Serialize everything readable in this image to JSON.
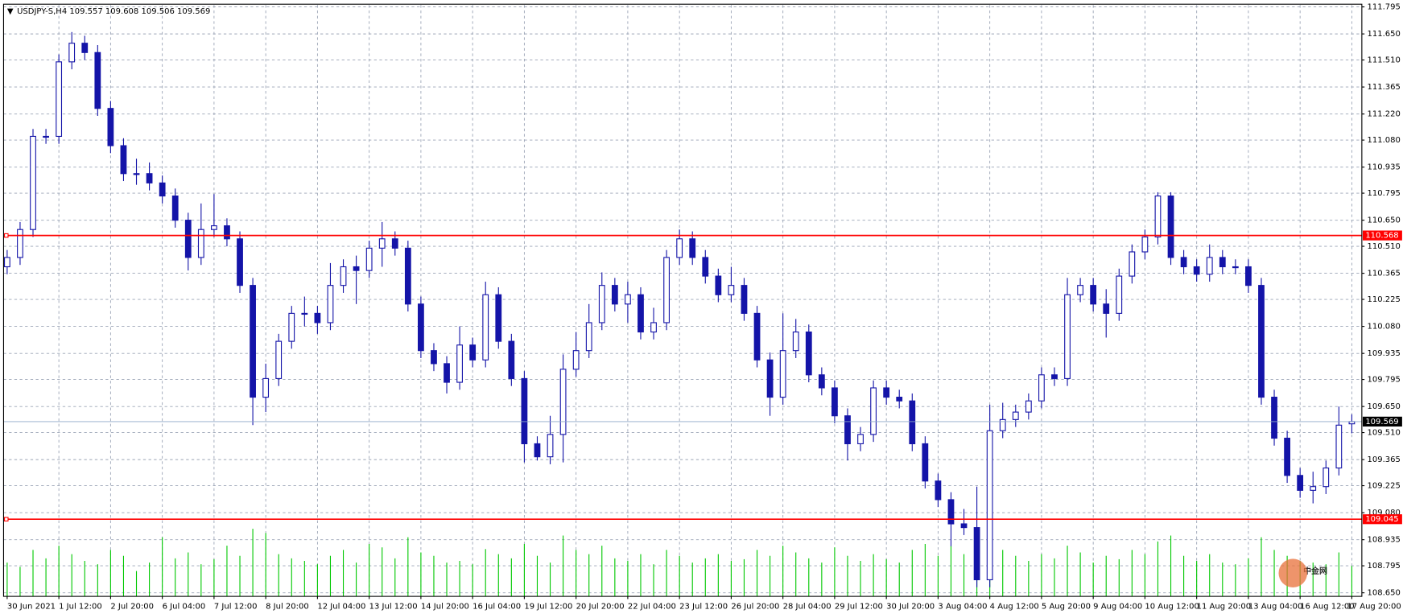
{
  "chart_data": {
    "type": "candlestick",
    "symbol": "USDJPY-S,H4",
    "up_color": "#ffffff",
    "color": "#1414a8",
    "volume_color": "#00c800",
    "level_color": "#ff0000",
    "last_color": "#8fa8c8",
    "grid": true,
    "watermark": "中金网",
    "ylim": [
      108.65,
      111.795
    ],
    "yticks": [
      111.795,
      {
        "value": 111.65,
        "label": "111.650"
      },
      {
        "value": 111.51,
        "label": "111.510"
      },
      111.365,
      {
        "value": 111.22,
        "label": "111.220"
      },
      {
        "value": 111.08,
        "label": "111.080"
      },
      110.935,
      110.795,
      {
        "value": 110.65,
        "label": "110.650"
      },
      {
        "value": 110.51,
        "label": "110.510"
      },
      110.365,
      110.225,
      {
        "value": 110.08,
        "label": "110.080"
      },
      109.935,
      109.795,
      {
        "value": 109.65,
        "label": "109.650"
      },
      {
        "value": 109.51,
        "label": "109.510"
      },
      109.365,
      109.225,
      {
        "value": 109.08,
        "label": "109.080"
      },
      108.935,
      108.795,
      {
        "value": 108.65,
        "label": "108.650"
      }
    ],
    "levels": [
      110.568,
      109.045
    ],
    "categories": [
      "30 Jun 2021",
      null,
      null,
      null,
      "1 Jul 12:00",
      null,
      null,
      null,
      "2 Jul 20:00",
      null,
      null,
      null,
      "6 Jul 04:00",
      null,
      null,
      null,
      "7 Jul 12:00",
      null,
      null,
      null,
      "8 Jul 20:00",
      null,
      null,
      null,
      "12 Jul 04:00",
      null,
      null,
      null,
      "13 Jul 12:00",
      null,
      null,
      null,
      "14 Jul 20:00",
      null,
      null,
      null,
      "16 Jul 04:00",
      null,
      null,
      null,
      "19 Jul 12:00",
      null,
      null,
      null,
      "20 Jul 20:00",
      null,
      null,
      null,
      "22 Jul 04:00",
      null,
      null,
      null,
      "23 Jul 12:00",
      null,
      null,
      null,
      "26 Jul 20:00",
      null,
      null,
      null,
      "28 Jul 04:00",
      null,
      null,
      null,
      "29 Jul 12:00",
      null,
      null,
      null,
      "30 Jul 20:00",
      null,
      null,
      null,
      "3 Aug 04:00",
      null,
      null,
      null,
      "4 Aug 12:00",
      null,
      null,
      null,
      "5 Aug 20:00",
      null,
      null,
      null,
      "9 Aug 04:00",
      null,
      null,
      null,
      "10 Aug 12:00",
      null,
      null,
      null,
      "11 Aug 20:00",
      null,
      null,
      null,
      "13 Aug 04:00",
      null,
      null,
      null,
      "16 Aug 12:00",
      null,
      null,
      null,
      "17 Aug 20:00"
    ],
    "open": [
      110.4,
      110.45,
      110.6,
      111.1,
      111.1,
      111.5,
      111.6,
      111.55,
      111.25,
      111.05,
      110.9,
      110.9,
      110.85,
      110.78,
      110.65,
      110.45,
      110.6,
      110.62,
      110.55,
      110.3,
      109.7,
      109.8,
      110.0,
      110.15,
      110.15,
      110.1,
      110.3,
      110.4,
      110.38,
      110.5,
      110.55,
      110.5,
      110.2,
      109.95,
      109.88,
      109.78,
      109.98,
      109.9,
      110.25,
      110.0,
      109.8,
      109.45,
      109.38,
      109.5,
      109.85,
      109.95,
      110.1,
      110.3,
      110.2,
      110.25,
      110.05,
      110.1,
      110.45,
      110.55,
      110.45,
      110.35,
      110.25,
      110.3,
      110.15,
      109.9,
      109.7,
      109.95,
      110.05,
      109.82,
      109.75,
      109.6,
      109.45,
      109.5,
      109.75,
      109.7,
      109.68,
      109.45,
      109.25,
      109.15,
      109.02,
      109.0,
      108.72,
      109.52,
      109.58,
      109.62,
      109.68,
      109.82,
      109.8,
      110.25,
      110.3,
      110.2,
      110.15,
      110.35,
      110.48,
      110.56,
      110.78,
      110.45,
      110.4,
      110.36,
      110.45,
      110.4,
      110.4,
      110.3,
      109.7,
      109.48,
      109.28,
      109.2,
      109.22,
      109.32,
      109.557
    ],
    "high": [
      110.49,
      110.64,
      111.14,
      111.14,
      111.54,
      111.66,
      111.64,
      111.59,
      111.29,
      111.09,
      110.98,
      110.96,
      110.89,
      110.82,
      110.69,
      110.74,
      110.79,
      110.66,
      110.59,
      110.34,
      109.88,
      110.04,
      110.19,
      110.24,
      110.19,
      110.42,
      110.44,
      110.46,
      110.54,
      110.64,
      110.59,
      110.54,
      110.24,
      109.99,
      109.92,
      110.08,
      110.02,
      110.32,
      110.29,
      110.04,
      109.84,
      109.49,
      109.6,
      109.93,
      110.05,
      110.2,
      110.37,
      110.34,
      110.32,
      110.29,
      110.18,
      110.49,
      110.6,
      110.59,
      110.49,
      110.39,
      110.4,
      110.34,
      110.19,
      109.94,
      110.15,
      110.12,
      110.09,
      109.86,
      109.79,
      109.64,
      109.54,
      109.79,
      109.79,
      109.74,
      109.72,
      109.49,
      109.29,
      109.19,
      109.1,
      109.22,
      109.66,
      109.67,
      109.66,
      109.72,
      109.86,
      109.86,
      110.34,
      110.34,
      110.34,
      110.28,
      110.39,
      110.52,
      110.6,
      110.8,
      110.8,
      110.49,
      110.44,
      110.52,
      110.49,
      110.44,
      110.44,
      110.34,
      109.74,
      109.52,
      109.32,
      109.3,
      109.36,
      109.65,
      109.608
    ],
    "low": [
      110.36,
      110.41,
      110.56,
      111.06,
      111.06,
      111.46,
      111.51,
      111.21,
      111.01,
      110.86,
      110.84,
      110.81,
      110.74,
      110.61,
      110.38,
      110.41,
      110.56,
      110.51,
      110.26,
      109.55,
      109.62,
      109.76,
      109.96,
      110.08,
      110.04,
      110.06,
      110.26,
      110.2,
      110.34,
      110.4,
      110.46,
      110.16,
      109.91,
      109.84,
      109.72,
      109.74,
      109.86,
      109.86,
      109.96,
      109.76,
      109.35,
      109.36,
      109.34,
      109.35,
      109.81,
      109.91,
      110.06,
      110.16,
      110.1,
      110.01,
      110.01,
      110.06,
      110.41,
      110.41,
      110.31,
      110.21,
      110.21,
      110.11,
      109.86,
      109.6,
      109.66,
      109.91,
      109.78,
      109.71,
      109.56,
      109.36,
      109.41,
      109.46,
      109.66,
      109.64,
      109.41,
      109.21,
      109.11,
      108.9,
      108.96,
      108.68,
      108.68,
      109.48,
      109.54,
      109.58,
      109.64,
      109.76,
      109.76,
      110.21,
      110.16,
      110.02,
      110.11,
      110.31,
      110.44,
      110.52,
      110.41,
      110.36,
      110.32,
      110.32,
      110.36,
      110.36,
      110.26,
      109.66,
      109.44,
      109.24,
      109.16,
      109.13,
      109.18,
      109.28,
      109.506
    ],
    "close": [
      110.45,
      110.6,
      111.1,
      111.1,
      111.5,
      111.6,
      111.55,
      111.25,
      111.05,
      110.9,
      110.9,
      110.85,
      110.78,
      110.65,
      110.45,
      110.6,
      110.62,
      110.55,
      110.3,
      109.7,
      109.8,
      110.0,
      110.15,
      110.15,
      110.1,
      110.3,
      110.4,
      110.38,
      110.5,
      110.55,
      110.5,
      110.2,
      109.95,
      109.88,
      109.78,
      109.98,
      109.9,
      110.25,
      110.0,
      109.8,
      109.45,
      109.38,
      109.5,
      109.85,
      109.95,
      110.1,
      110.3,
      110.2,
      110.25,
      110.05,
      110.1,
      110.45,
      110.55,
      110.45,
      110.35,
      110.25,
      110.3,
      110.15,
      109.9,
      109.7,
      109.95,
      110.05,
      109.82,
      109.75,
      109.6,
      109.45,
      109.5,
      109.75,
      109.7,
      109.68,
      109.45,
      109.25,
      109.15,
      109.02,
      109.0,
      108.72,
      109.52,
      109.58,
      109.62,
      109.68,
      109.82,
      109.8,
      110.25,
      110.3,
      110.2,
      110.15,
      110.35,
      110.48,
      110.56,
      110.78,
      110.45,
      110.4,
      110.36,
      110.45,
      110.4,
      110.4,
      110.3,
      109.7,
      109.48,
      109.28,
      109.2,
      109.22,
      109.32,
      109.55,
      109.569
    ],
    "volume": [
      40,
      35,
      55,
      45,
      60,
      50,
      42,
      38,
      55,
      48,
      30,
      40,
      70,
      45,
      52,
      38,
      44,
      60,
      48,
      80,
      75,
      50,
      45,
      42,
      38,
      48,
      55,
      40,
      62,
      58,
      45,
      70,
      52,
      48,
      40,
      42,
      38,
      56,
      50,
      45,
      62,
      48,
      40,
      72,
      55,
      50,
      60,
      45,
      42,
      50,
      38,
      55,
      48,
      40,
      45,
      50,
      42,
      44,
      55,
      48,
      60,
      52,
      45,
      40,
      58,
      48,
      42,
      50,
      44,
      40,
      55,
      62,
      48,
      60,
      50,
      70,
      90,
      55,
      48,
      42,
      50,
      45,
      60,
      52,
      40,
      48,
      44,
      55,
      50,
      65,
      72,
      48,
      42,
      50,
      40,
      38,
      45,
      70,
      55,
      48,
      42,
      40,
      38,
      52,
      36
    ]
  }
}
